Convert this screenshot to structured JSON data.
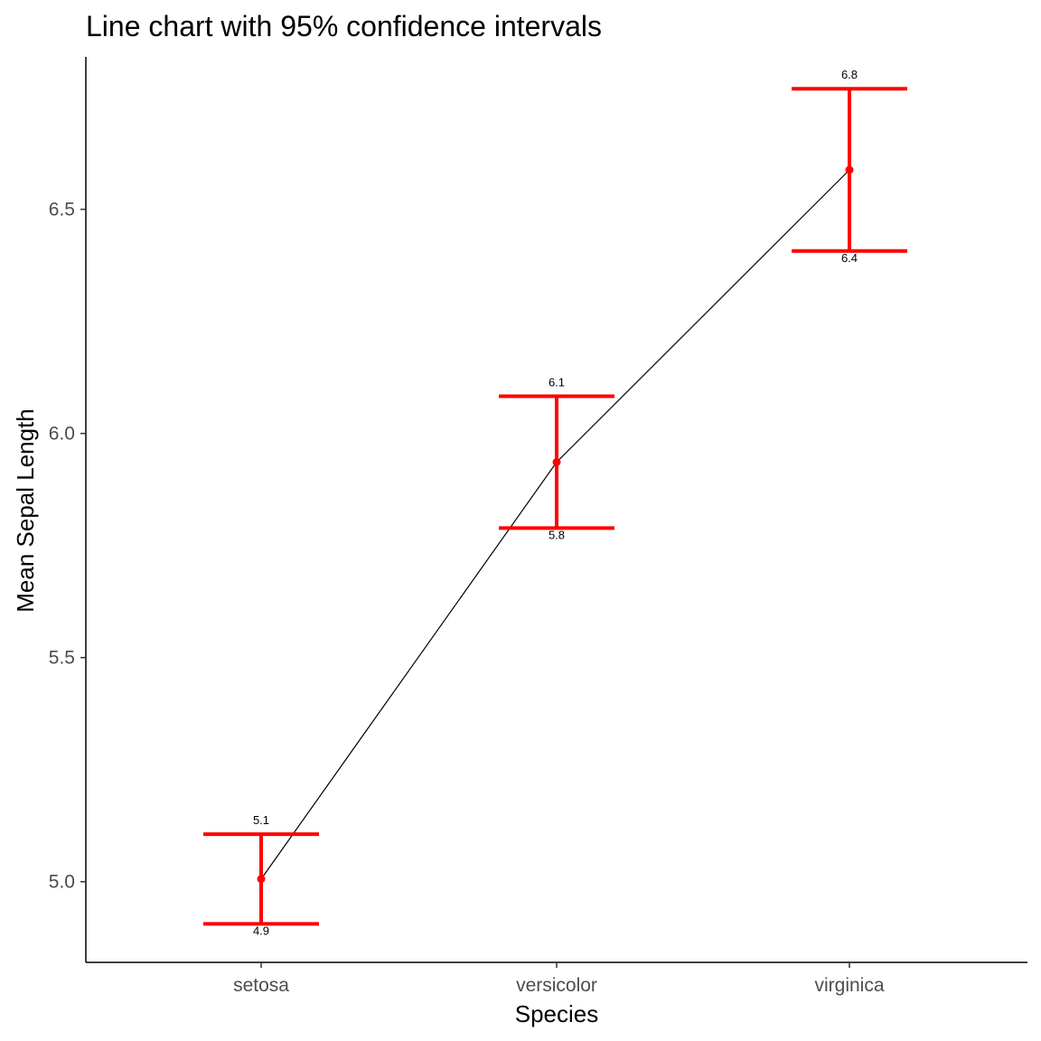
{
  "chart_data": {
    "type": "line",
    "title": "Line chart with 95% confidence intervals",
    "xlabel": "Species",
    "ylabel": "Mean Sepal Length",
    "categories": [
      "setosa",
      "versicolor",
      "virginica"
    ],
    "series": [
      {
        "values": [
          5.006,
          5.936,
          6.588
        ],
        "lower": [
          4.906,
          5.789,
          6.407
        ],
        "upper": [
          5.106,
          6.083,
          6.769
        ],
        "lower_labels": [
          "4.9",
          "5.8",
          "6.4"
        ],
        "upper_labels": [
          "5.1",
          "6.1",
          "6.8"
        ]
      }
    ],
    "ylim": [
      4.82,
      6.84
    ],
    "yticks": [
      5.0,
      5.5,
      6.0,
      6.5
    ],
    "ytick_labels": [
      "5.0",
      "5.5",
      "6.0",
      "6.5"
    ],
    "grid": false,
    "legend": "none",
    "colors": {
      "line": "#000000",
      "error_bar": "#ff0000",
      "point": "#ff0000"
    }
  }
}
